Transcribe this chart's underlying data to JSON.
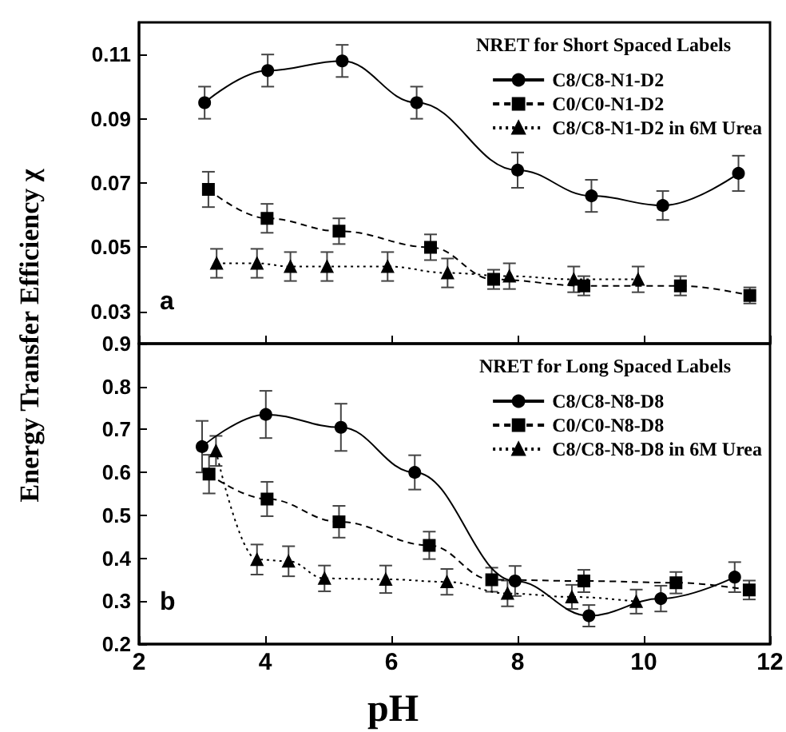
{
  "chart_data": [
    {
      "type": "line",
      "ylabel": "Energy Transfer Efficiency χ",
      "legend_title": "NRET for Short Spaced Labels",
      "annotations": [
        "a"
      ],
      "xlim": [
        2,
        12
      ],
      "xticks": [
        2,
        4,
        6,
        8,
        10,
        12
      ],
      "ylim": [
        0.02,
        0.12
      ],
      "yticks": [
        0.03,
        0.05,
        0.07,
        0.09,
        0.11
      ],
      "tick_labels": "y",
      "legend": "top right",
      "grid": false,
      "series": [
        {
          "name": "C8/C8-N1-D2",
          "color": "#000000",
          "marker": "circle",
          "line_style": "solid",
          "x": [
            3.04,
            4.04,
            5.22,
            6.4,
            8.0,
            9.17,
            10.3,
            11.5
          ],
          "values": [
            0.095,
            0.105,
            0.108,
            0.095,
            0.074,
            0.066,
            0.063,
            0.073
          ],
          "errors": [
            0.005,
            0.005,
            0.005,
            0.005,
            0.0055,
            0.005,
            0.0045,
            0.0055
          ]
        },
        {
          "name": "C0/C0-N1-D2",
          "color": "#000000",
          "marker": "square",
          "line_style": "dashed",
          "x": [
            3.1,
            4.03,
            5.17,
            6.62,
            7.62,
            9.05,
            10.58,
            11.68
          ],
          "values": [
            0.068,
            0.059,
            0.055,
            0.05,
            0.04,
            0.038,
            0.038,
            0.035
          ],
          "errors": [
            0.0055,
            0.0045,
            0.004,
            0.004,
            0.003,
            0.003,
            0.003,
            0.0025
          ]
        },
        {
          "name": "C8/C8-N1-D2 in 6M Urea",
          "color": "#000000",
          "marker": "triangle",
          "line_style": "dotted",
          "x": [
            3.23,
            3.87,
            4.4,
            4.98,
            5.94,
            6.89,
            7.87,
            8.89,
            9.91
          ],
          "values": [
            0.045,
            0.045,
            0.044,
            0.044,
            0.044,
            0.042,
            0.041,
            0.04,
            0.04
          ],
          "errors": [
            0.0045,
            0.0045,
            0.0045,
            0.0045,
            0.0045,
            0.0045,
            0.004,
            0.004,
            0.004
          ]
        }
      ]
    },
    {
      "type": "line",
      "xlabel": "pH",
      "legend_title": "NRET for Long Spaced Labels",
      "annotations": [
        "b"
      ],
      "xlim": [
        2,
        12
      ],
      "xticks": [
        2,
        4,
        6,
        8,
        10,
        12
      ],
      "ylim": [
        0.2,
        0.9
      ],
      "yticks": [
        0.2,
        0.3,
        0.4,
        0.5,
        0.6,
        0.7,
        0.8,
        0.9
      ],
      "legend": "top right",
      "grid": false,
      "series": [
        {
          "name": "C8/C8-N8-D8",
          "color": "#000000",
          "marker": "circle",
          "line_style": "solid",
          "x": [
            3.0,
            4.01,
            5.2,
            6.37,
            7.96,
            9.13,
            10.27,
            11.44
          ],
          "values": [
            0.66,
            0.735,
            0.705,
            0.6,
            0.347,
            0.266,
            0.306,
            0.356
          ],
          "errors": [
            0.06,
            0.055,
            0.055,
            0.04,
            0.035,
            0.025,
            0.03,
            0.035
          ]
        },
        {
          "name": "C0/C0-N8-D8",
          "color": "#000000",
          "marker": "square",
          "line_style": "dashed",
          "x": [
            3.11,
            4.03,
            5.17,
            6.6,
            7.59,
            9.05,
            10.51,
            11.67
          ],
          "values": [
            0.596,
            0.538,
            0.485,
            0.43,
            0.35,
            0.347,
            0.343,
            0.326
          ],
          "errors": [
            0.045,
            0.04,
            0.037,
            0.032,
            0.028,
            0.026,
            0.025,
            0.022
          ]
        },
        {
          "name": "C8/C8-N8-D8 in 6M Urea",
          "color": "#000000",
          "marker": "triangle",
          "line_style": "dotted",
          "x": [
            3.22,
            3.87,
            4.37,
            4.94,
            5.91,
            6.88,
            7.84,
            8.86,
            9.88
          ],
          "values": [
            0.65,
            0.397,
            0.393,
            0.353,
            0.351,
            0.345,
            0.318,
            0.31,
            0.299
          ],
          "errors": [
            0.035,
            0.035,
            0.035,
            0.03,
            0.032,
            0.03,
            0.03,
            0.028,
            0.028
          ]
        }
      ]
    }
  ]
}
